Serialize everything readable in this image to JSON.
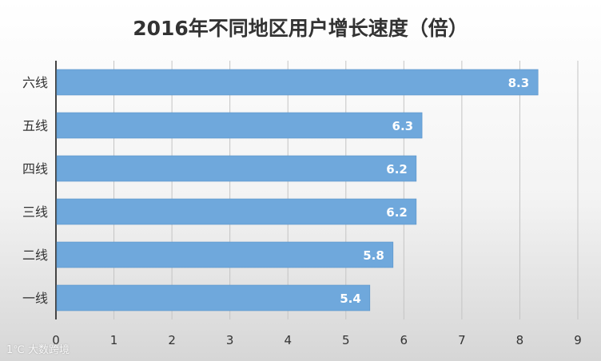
{
  "chart_data": {
    "type": "bar",
    "orientation": "horizontal",
    "title": "2016年不同地区用户增长速度（倍）",
    "categories": [
      "六线",
      "五线",
      "四线",
      "三线",
      "二线",
      "一线"
    ],
    "values": [
      8.3,
      6.3,
      6.2,
      6.2,
      5.8,
      5.4
    ],
    "xlim": [
      0,
      9
    ],
    "x_ticks": [
      "0",
      "1",
      "2",
      "3",
      "4",
      "5",
      "6",
      "7",
      "8",
      "9"
    ],
    "xlabel": "",
    "ylabel": "",
    "grid": true,
    "legend": "none",
    "bar_color": "#6fa8dc",
    "data_label_color": "#ffffff"
  },
  "watermark": "1℃ 大数跨境"
}
